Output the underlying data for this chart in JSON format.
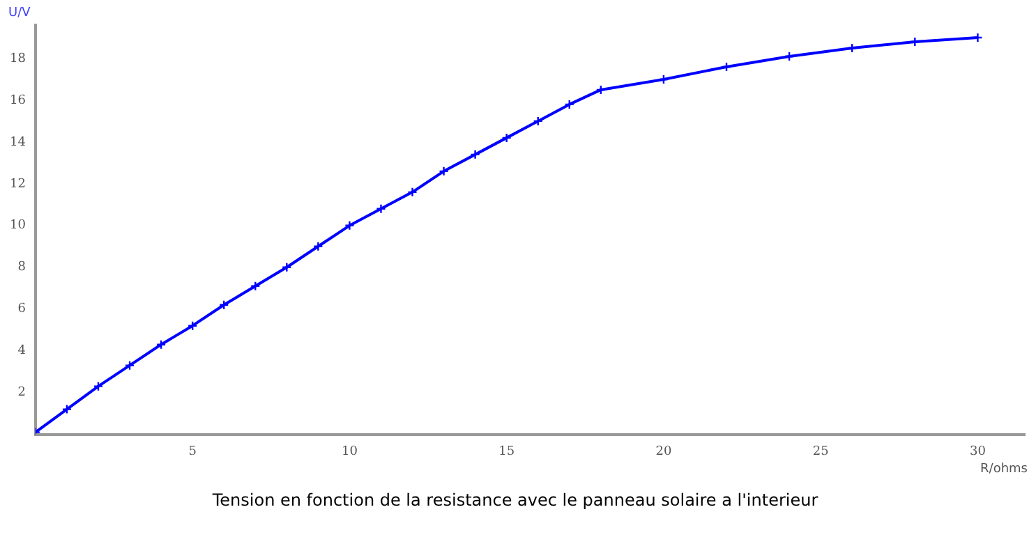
{
  "chart_data": {
    "type": "line",
    "title": "Tension en fonction de la resistance avec le panneau solaire a l'interieur",
    "xlabel": "R/ohms",
    "ylabel": "U/V",
    "x": [
      0,
      1,
      2,
      3,
      4,
      5,
      6,
      7,
      8,
      9,
      10,
      11,
      12,
      13,
      14,
      15,
      16,
      17,
      18,
      20,
      22,
      24,
      26,
      28,
      30
    ],
    "series": [
      {
        "color": "#0000ff",
        "values": [
          0.1,
          1.2,
          2.3,
          3.3,
          4.3,
          5.2,
          6.2,
          7.1,
          8.0,
          9.0,
          10.0,
          10.8,
          11.6,
          12.6,
          13.4,
          14.2,
          15.0,
          15.8,
          16.5,
          17.0,
          17.6,
          18.1,
          18.5,
          18.8,
          19.0
        ]
      }
    ],
    "xlim": [
      0,
      31.5
    ],
    "xticks": [
      5,
      10,
      15,
      20,
      25,
      30
    ],
    "ylim": [
      0,
      19.6
    ],
    "yticks": [
      2,
      4,
      6,
      8,
      10,
      12,
      14,
      16,
      18
    ],
    "grid": false,
    "legend": false,
    "marker": "cross",
    "line_style": "solid"
  }
}
